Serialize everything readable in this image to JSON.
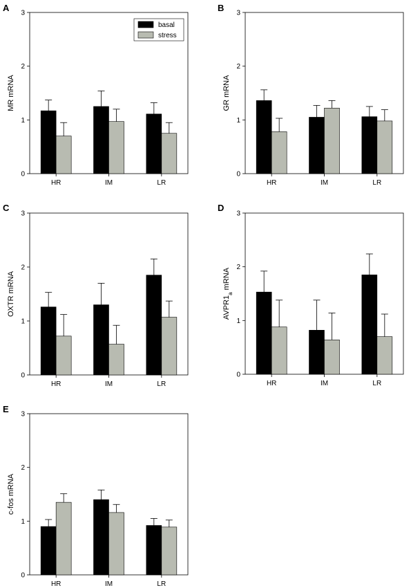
{
  "legend": {
    "basal": "basal",
    "stress": "stress"
  },
  "colors": {
    "basal": "#000000",
    "stress": "#b8bbb1",
    "axis": "#000000"
  },
  "chart_data": [
    {
      "type": "bar",
      "letter": "A",
      "ylabel_parts": [
        {
          "t": "MR mRNA",
          "sub": false
        }
      ],
      "categories": [
        "HR",
        "IM",
        "LR"
      ],
      "ylim": [
        0,
        3
      ],
      "yticks": [
        "0",
        "1",
        "2",
        "3"
      ],
      "legend_position": "top-right",
      "series": [
        {
          "name": "basal",
          "values": [
            1.17,
            1.25,
            1.11
          ],
          "errors": [
            0.2,
            0.29,
            0.21
          ]
        },
        {
          "name": "stress",
          "values": [
            0.7,
            0.97,
            0.75
          ],
          "errors": [
            0.25,
            0.23,
            0.2
          ]
        }
      ]
    },
    {
      "type": "bar",
      "letter": "B",
      "ylabel_parts": [
        {
          "t": "GR mRNA",
          "sub": false
        }
      ],
      "categories": [
        "HR",
        "IM",
        "LR"
      ],
      "ylim": [
        0,
        3
      ],
      "yticks": [
        "0",
        "1",
        "2",
        "3"
      ],
      "series": [
        {
          "name": "basal",
          "values": [
            1.36,
            1.05,
            1.06
          ],
          "errors": [
            0.2,
            0.22,
            0.19
          ]
        },
        {
          "name": "stress",
          "values": [
            0.78,
            1.22,
            0.98
          ],
          "errors": [
            0.25,
            0.14,
            0.21
          ]
        }
      ]
    },
    {
      "type": "bar",
      "letter": "C",
      "ylabel_parts": [
        {
          "t": "OXTR mRNA",
          "sub": false
        }
      ],
      "categories": [
        "HR",
        "IM",
        "LR"
      ],
      "ylim": [
        0,
        3
      ],
      "yticks": [
        "0",
        "1",
        "2",
        "3"
      ],
      "series": [
        {
          "name": "basal",
          "values": [
            1.26,
            1.3,
            1.85
          ],
          "errors": [
            0.27,
            0.4,
            0.3
          ]
        },
        {
          "name": "stress",
          "values": [
            0.72,
            0.57,
            1.07
          ],
          "errors": [
            0.4,
            0.35,
            0.3
          ]
        }
      ]
    },
    {
      "type": "bar",
      "letter": "D",
      "ylabel_parts": [
        {
          "t": "AVPR1",
          "sub": false
        },
        {
          "t": "a",
          "sub": true
        },
        {
          "t": " mRNA",
          "sub": false
        }
      ],
      "categories": [
        "HR",
        "IM",
        "LR"
      ],
      "ylim": [
        0,
        3
      ],
      "yticks": [
        "0",
        "1",
        "2",
        "3"
      ],
      "series": [
        {
          "name": "basal",
          "values": [
            1.53,
            0.82,
            1.85
          ],
          "errors": [
            0.39,
            0.56,
            0.39
          ]
        },
        {
          "name": "stress",
          "values": [
            0.88,
            0.64,
            0.7
          ],
          "errors": [
            0.5,
            0.5,
            0.42
          ]
        }
      ]
    },
    {
      "type": "bar",
      "letter": "E",
      "ylabel_parts": [
        {
          "t": "c-fos mRNA",
          "sub": false
        }
      ],
      "categories": [
        "HR",
        "IM",
        "LR"
      ],
      "ylim": [
        0,
        3
      ],
      "yticks": [
        "0",
        "1",
        "2",
        "3"
      ],
      "series": [
        {
          "name": "basal",
          "values": [
            0.9,
            1.4,
            0.92
          ],
          "errors": [
            0.13,
            0.18,
            0.13
          ]
        },
        {
          "name": "stress",
          "values": [
            1.35,
            1.16,
            0.89
          ],
          "errors": [
            0.16,
            0.15,
            0.13
          ]
        }
      ]
    }
  ]
}
